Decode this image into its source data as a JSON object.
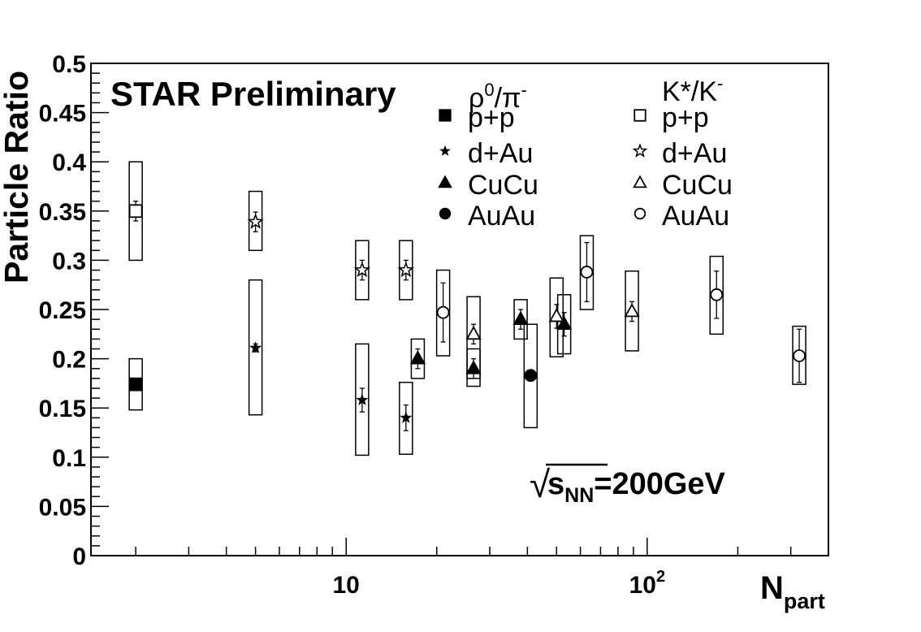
{
  "chart_data": {
    "type": "scatter",
    "title": "STAR Preliminary",
    "annotation": {
      "sqrt": "√",
      "s": "s",
      "sub": "NN",
      "rest": "=200GeV"
    },
    "xlabel": {
      "main": "N",
      "sub": "part"
    },
    "ylabel": "Particle Ratio",
    "x_scale": "log",
    "xlim": [
      1.42,
      400
    ],
    "ylim": [
      0,
      0.5
    ],
    "y_ticks": [
      "0",
      "0.05",
      "0.1",
      "0.15",
      "0.2",
      "0.25",
      "0.3",
      "0.35",
      "0.4",
      "0.45",
      "0.5"
    ],
    "x_tick_labels": [
      {
        "x": 10,
        "base": "10",
        "exp": ""
      },
      {
        "x": 100,
        "base": "10",
        "exp": "2"
      }
    ],
    "legend": {
      "rho": {
        "header_main": "ρ",
        "header_sup1": "0",
        "header_mid": "/π",
        "header_sup2": "-"
      },
      "kstar": {
        "header_main": "K*/K",
        "header_sup": "-"
      },
      "entries": [
        "p+p",
        "d+Au",
        "CuCu",
        "AuAu"
      ]
    },
    "series": [
      {
        "name": "ρ0/π- p+p",
        "marker": "square",
        "filled": true,
        "points": [
          {
            "x": 2,
            "y": 0.174,
            "err": 0,
            "sys": [
              0.148,
              0.2
            ]
          }
        ]
      },
      {
        "name": "ρ0/π- d+Au",
        "marker": "star",
        "filled": true,
        "points": [
          {
            "x": 5,
            "y": 0.211,
            "err": 0.004,
            "sys": [
              0.143,
              0.28
            ]
          },
          {
            "x": 11.3,
            "y": 0.158,
            "err": 0.012,
            "sys": [
              0.102,
              0.215
            ]
          },
          {
            "x": 15.8,
            "y": 0.14,
            "err": 0.013,
            "sys": [
              0.103,
              0.176
            ]
          }
        ]
      },
      {
        "name": "ρ0/π- CuCu",
        "marker": "triangle",
        "filled": true,
        "points": [
          {
            "x": 17.3,
            "y": 0.2,
            "err": 0.01,
            "sys": [
              0.18,
              0.22
            ]
          },
          {
            "x": 26.5,
            "y": 0.19,
            "err": 0.01,
            "sys": [
              0.172,
              0.21
            ]
          },
          {
            "x": 38,
            "y": 0.24,
            "err": 0.01,
            "sys": [
              0.22,
              0.26
            ]
          },
          {
            "x": 53,
            "y": 0.235,
            "err": 0.012,
            "sys": [
              0.205,
              0.265
            ]
          }
        ]
      },
      {
        "name": "ρ0/π- AuAu",
        "marker": "circle",
        "filled": true,
        "points": [
          {
            "x": 41,
            "y": 0.183,
            "err": 0,
            "sys": [
              0.13,
              0.235
            ]
          }
        ]
      },
      {
        "name": "K*/K- p+p",
        "marker": "square",
        "filled": false,
        "points": [
          {
            "x": 2,
            "y": 0.35,
            "err": 0.01,
            "sys": [
              0.3,
              0.4
            ]
          }
        ]
      },
      {
        "name": "K*/K- d+Au",
        "marker": "star",
        "filled": false,
        "points": [
          {
            "x": 5,
            "y": 0.339,
            "err": 0.01,
            "sys": [
              0.31,
              0.37
            ]
          },
          {
            "x": 11.3,
            "y": 0.29,
            "err": 0.01,
            "sys": [
              0.26,
              0.32
            ]
          },
          {
            "x": 15.8,
            "y": 0.29,
            "err": 0.01,
            "sys": [
              0.26,
              0.32
            ]
          }
        ]
      },
      {
        "name": "K*/K- CuCu",
        "marker": "triangle",
        "filled": false,
        "points": [
          {
            "x": 26.5,
            "y": 0.225,
            "err": 0.01,
            "sys": [
              0.18,
              0.263
            ]
          },
          {
            "x": 50,
            "y": 0.243,
            "err": 0.012,
            "sys": [
              0.202,
              0.282
            ]
          },
          {
            "x": 89,
            "y": 0.248,
            "err": 0.01,
            "sys": [
              0.208,
              0.289
            ]
          }
        ]
      },
      {
        "name": "K*/K- AuAu",
        "marker": "circle",
        "filled": false,
        "points": [
          {
            "x": 21,
            "y": 0.247,
            "err": 0.03,
            "sys": [
              0.203,
              0.29
            ]
          },
          {
            "x": 63,
            "y": 0.288,
            "err": 0.03,
            "sys": [
              0.25,
              0.325
            ]
          },
          {
            "x": 170,
            "y": 0.265,
            "err": 0.024,
            "sys": [
              0.225,
              0.304
            ]
          },
          {
            "x": 320,
            "y": 0.203,
            "err": 0.027,
            "sys": [
              0.174,
              0.233
            ]
          }
        ]
      }
    ]
  }
}
